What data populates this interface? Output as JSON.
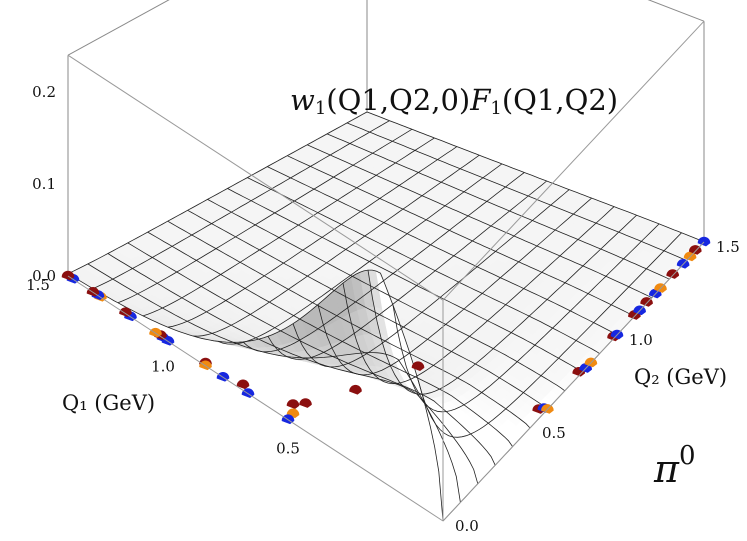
{
  "chart_data": {
    "type": "surface3d",
    "title": {
      "w": "w",
      "w_sub": "1",
      "args": "(Q1,Q2,0)",
      "f": "F",
      "f_sub": "1",
      "f_args": "(Q1,Q2)"
    },
    "panel_label": {
      "base": "π",
      "sup": "0"
    },
    "x_axis": {
      "label": "Q₁ (GeV)",
      "ticks": [
        "0.5",
        "1.0",
        "1.5"
      ],
      "range": [
        0,
        1.5
      ]
    },
    "y_axis": {
      "label": "Q₂ (GeV)",
      "ticks": [
        "0.0",
        "0.5",
        "1.0",
        "1.5"
      ],
      "range": [
        0,
        1.5
      ]
    },
    "z_axis": {
      "ticks": [
        "0.0",
        "0.1",
        "0.2"
      ],
      "range": [
        0,
        0.24
      ]
    },
    "grid": {
      "x": [
        0,
        0.1,
        0.2,
        0.3,
        0.4,
        0.5,
        0.6,
        0.7,
        0.8,
        0.9,
        1.0,
        1.1,
        1.2,
        1.3,
        1.4,
        1.5
      ],
      "y": [
        0,
        0.1,
        0.2,
        0.3,
        0.4,
        0.5,
        0.6,
        0.7,
        0.8,
        0.9,
        1.0,
        1.1,
        1.2,
        1.3,
        1.4,
        1.5
      ]
    },
    "surface_peak": {
      "q1": 0.25,
      "q2": 0,
      "value": 0.225
    },
    "points_along_q1": [
      {
        "q1": 0.1,
        "q2": 0,
        "value": 0.15,
        "series": "dark-red"
      },
      {
        "q1": 0.35,
        "q2": 0,
        "value": 0.08,
        "series": "dark-red"
      },
      {
        "q1": 0.55,
        "q2": 0,
        "value": 0.03,
        "series": "dark-red"
      },
      {
        "q1": 0.6,
        "q2": 0,
        "value": 0.02,
        "series": "dark-red"
      },
      {
        "q1": 0.6,
        "q2": 0,
        "value": 0.01,
        "series": "orange"
      },
      {
        "q1": 0.62,
        "q2": 0,
        "value": 0.0,
        "series": "blue"
      },
      {
        "q1": 0.8,
        "q2": 0,
        "value": 0.006,
        "series": "dark-red"
      },
      {
        "q1": 0.78,
        "q2": 0,
        "value": 0.0,
        "series": "blue"
      },
      {
        "q1": 0.88,
        "q2": 0,
        "value": 0.0,
        "series": "blue"
      },
      {
        "q1": 0.95,
        "q2": 0,
        "value": 0.003,
        "series": "dark-red"
      },
      {
        "q1": 0.95,
        "q2": 0,
        "value": 0.0,
        "series": "orange"
      },
      {
        "q1": 1.1,
        "q2": 0,
        "value": 0.0,
        "series": "blue"
      },
      {
        "q1": 1.12,
        "q2": 0,
        "value": 0.0,
        "series": "blue"
      },
      {
        "q1": 1.13,
        "q2": 0,
        "value": 0.001,
        "series": "dark-red"
      },
      {
        "q1": 1.15,
        "q2": 0,
        "value": 0.0,
        "series": "orange"
      },
      {
        "q1": 1.25,
        "q2": 0,
        "value": 0.0,
        "series": "blue"
      },
      {
        "q1": 1.27,
        "q2": 0,
        "value": 0.001,
        "series": "dark-red"
      },
      {
        "q1": 1.37,
        "q2": 0,
        "value": 0.0,
        "series": "orange"
      },
      {
        "q1": 1.38,
        "q2": 0,
        "value": 0.0,
        "series": "blue"
      },
      {
        "q1": 1.4,
        "q2": 0,
        "value": 0.0,
        "series": "dark-red"
      },
      {
        "q1": 1.48,
        "q2": 0,
        "value": 0.0,
        "series": "blue"
      },
      {
        "q1": 1.5,
        "q2": 0,
        "value": 0.0,
        "series": "dark-red"
      }
    ],
    "points_along_q2": [
      {
        "q1": 0,
        "q2": 0.55,
        "value": 0.01,
        "series": "dark-red"
      },
      {
        "q1": 0,
        "q2": 0.58,
        "value": 0.005,
        "series": "blue"
      },
      {
        "q1": 0,
        "q2": 0.6,
        "value": 0.0,
        "series": "orange"
      },
      {
        "q1": 0,
        "q2": 0.78,
        "value": 0.004,
        "series": "dark-red"
      },
      {
        "q1": 0,
        "q2": 0.82,
        "value": 0.0,
        "series": "blue"
      },
      {
        "q1": 0,
        "q2": 0.85,
        "value": 0.0,
        "series": "orange"
      },
      {
        "q1": 0,
        "q2": 0.98,
        "value": 0.002,
        "series": "dark-red"
      },
      {
        "q1": 0,
        "q2": 1.0,
        "value": 0.0,
        "series": "blue"
      },
      {
        "q1": 0,
        "q2": 1.1,
        "value": 0.001,
        "series": "dark-red"
      },
      {
        "q1": 0,
        "q2": 1.13,
        "value": 0.0,
        "series": "blue"
      },
      {
        "q1": 0,
        "q2": 1.17,
        "value": 0.001,
        "series": "dark-red"
      },
      {
        "q1": 0,
        "q2": 1.22,
        "value": 0.0,
        "series": "blue"
      },
      {
        "q1": 0,
        "q2": 1.25,
        "value": 0.0,
        "series": "orange"
      },
      {
        "q1": 0,
        "q2": 1.32,
        "value": 0.001,
        "series": "dark-red"
      },
      {
        "q1": 0,
        "q2": 1.38,
        "value": 0.0,
        "series": "blue"
      },
      {
        "q1": 0,
        "q2": 1.42,
        "value": 0.0,
        "series": "orange"
      },
      {
        "q1": 0,
        "q2": 1.45,
        "value": 0.001,
        "series": "dark-red"
      },
      {
        "q1": 0,
        "q2": 1.5,
        "value": 0.0,
        "series": "blue"
      }
    ],
    "series_colors": {
      "dark-red": "#8b0f0f",
      "orange": "#f08a12",
      "blue": "#1627e0"
    }
  }
}
